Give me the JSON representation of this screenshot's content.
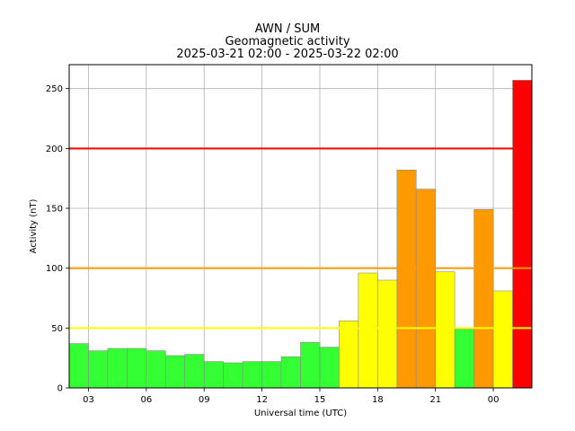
{
  "chart_data": {
    "type": "bar",
    "title_lines": [
      "AWN / SUM",
      "Geomagnetic activity",
      "2025-03-21 02:00 - 2025-03-22 02:00"
    ],
    "xlabel": "Universal time (UTC)",
    "ylabel": "Activity (nT)",
    "ylim": [
      0,
      270
    ],
    "xlim_hours": [
      2,
      26
    ],
    "y_ticks": [
      0,
      50,
      100,
      150,
      200,
      250
    ],
    "x_ticks": [
      {
        "hour": 3,
        "label": "03"
      },
      {
        "hour": 6,
        "label": "06"
      },
      {
        "hour": 9,
        "label": "09"
      },
      {
        "hour": 12,
        "label": "12"
      },
      {
        "hour": 15,
        "label": "15"
      },
      {
        "hour": 18,
        "label": "18"
      },
      {
        "hour": 21,
        "label": "21"
      },
      {
        "hour": 24,
        "label": "00"
      }
    ],
    "grid": true,
    "bar_start_hour": 2,
    "bar_width_hours": 1,
    "values": [
      37,
      31,
      33,
      33,
      31,
      27,
      28,
      22,
      21,
      22,
      22,
      26,
      38,
      34,
      56,
      96,
      90,
      182,
      166,
      97,
      49,
      149,
      81,
      257
    ],
    "colors": [
      "#33ff33",
      "#33ff33",
      "#33ff33",
      "#33ff33",
      "#33ff33",
      "#33ff33",
      "#33ff33",
      "#33ff33",
      "#33ff33",
      "#33ff33",
      "#33ff33",
      "#33ff33",
      "#33ff33",
      "#33ff33",
      "#ffff00",
      "#ffff00",
      "#ffff00",
      "#ff9900",
      "#ff9900",
      "#ffff00",
      "#33ff33",
      "#ff9900",
      "#ffff00",
      "#ff0000"
    ],
    "threshold_lines": [
      {
        "value": 50,
        "color": "#ffff00"
      },
      {
        "value": 100,
        "color": "#ff9900"
      },
      {
        "value": 200,
        "color": "#ff0000"
      }
    ]
  }
}
